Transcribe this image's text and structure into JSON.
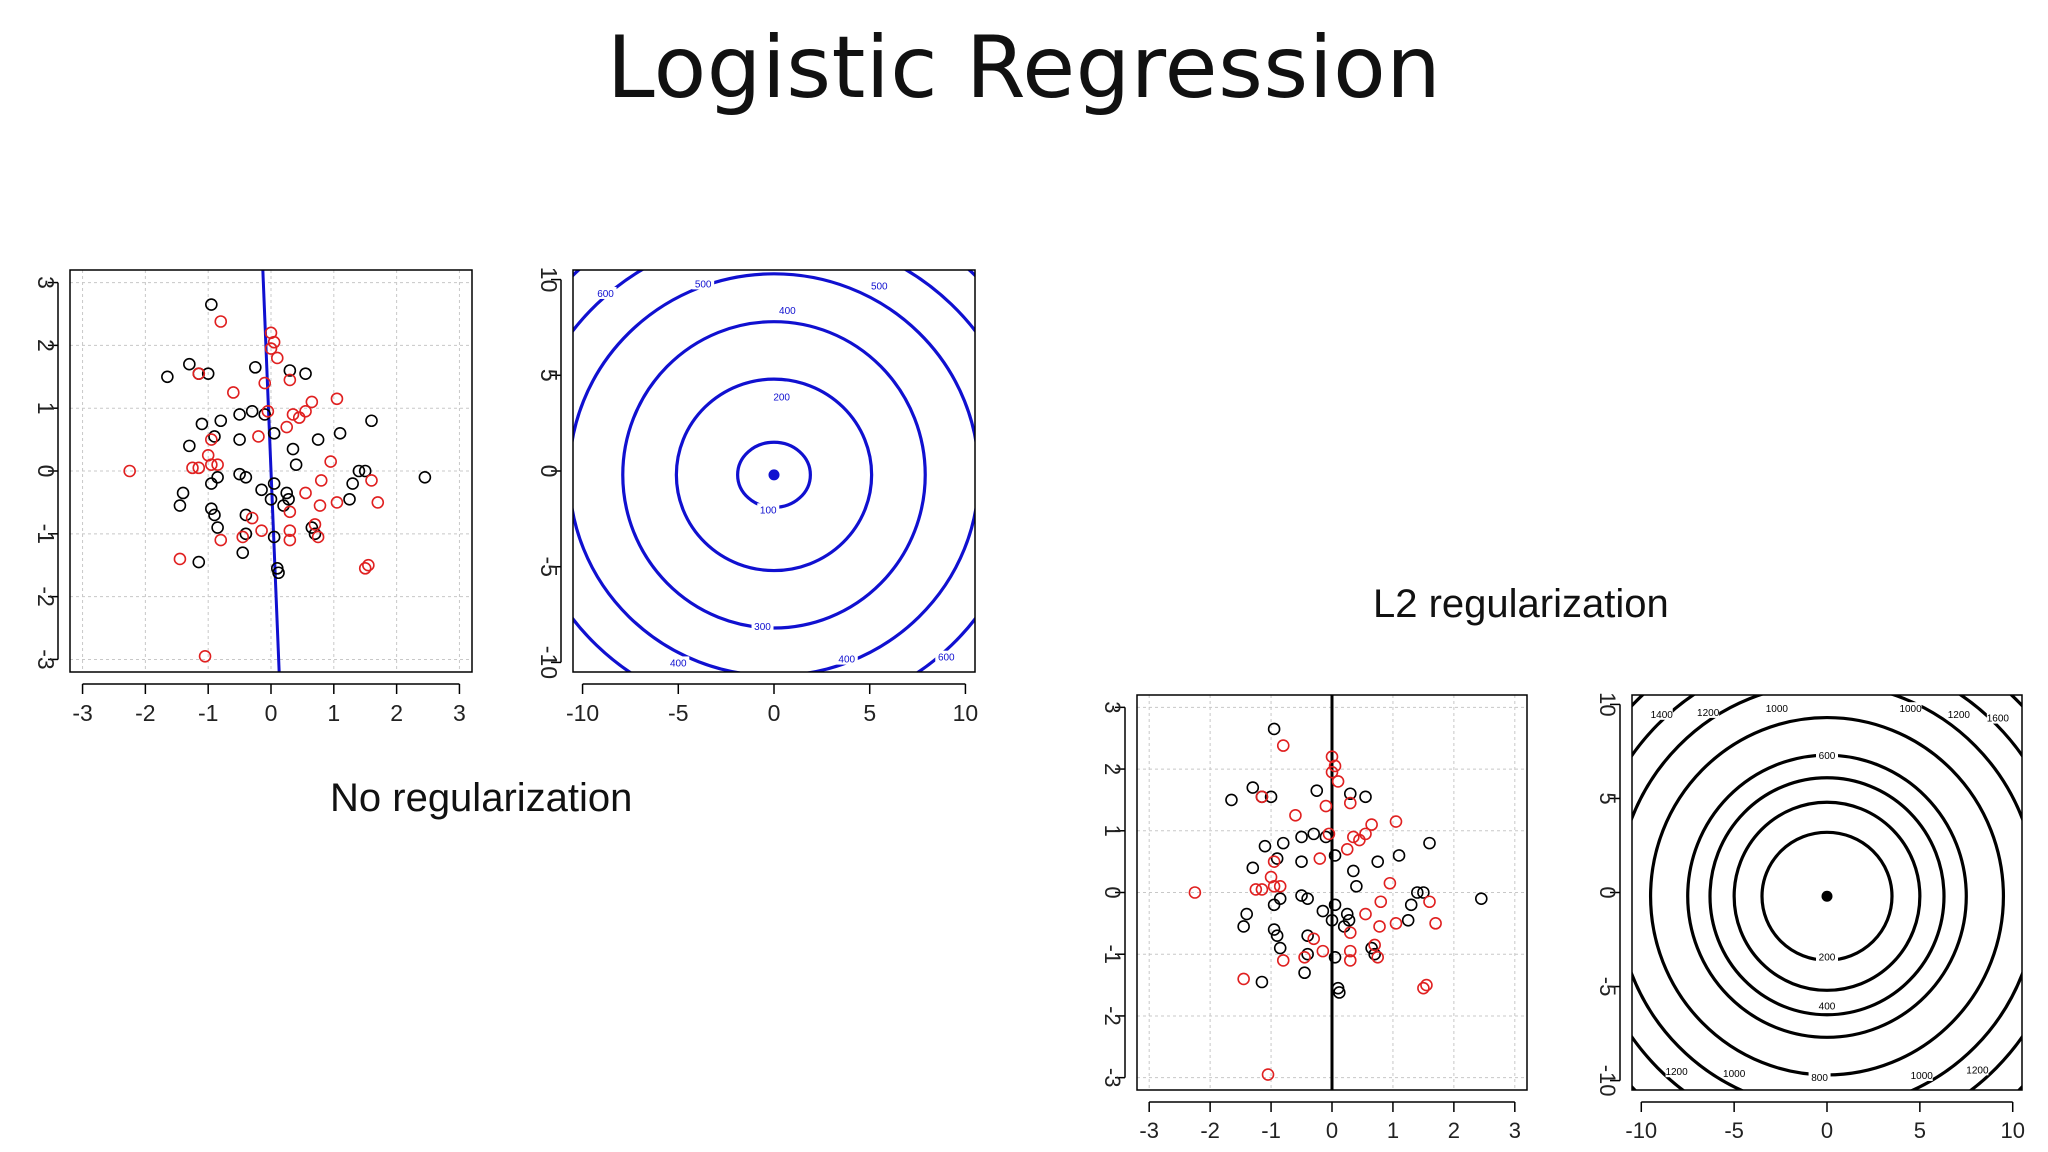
{
  "title": "Logistic Regression",
  "captions": {
    "no_reg": "No regularization",
    "l2": "L2 regularization"
  },
  "colors": {
    "class_a": "#000000",
    "class_b": "#e02020",
    "noreg_line": "#1010d0",
    "l2_line": "#000000",
    "grid": "#c8c8c8"
  },
  "chart_data": [
    {
      "id": "noreg-scatter",
      "type": "scatter",
      "xlim": [
        -3.2,
        3.2
      ],
      "ylim": [
        -3.2,
        3.2
      ],
      "xticks": [
        -3,
        -2,
        -1,
        0,
        1,
        2,
        3
      ],
      "yticks": [
        -3,
        -2,
        -1,
        0,
        1,
        2,
        3
      ],
      "grid": true,
      "line_color": "#1010d0",
      "boundary": [
        [
          -0.13,
          3.2
        ],
        [
          0.13,
          -3.2
        ]
      ],
      "series": [
        {
          "color": "#000000",
          "points": [
            [
              -0.95,
              2.65
            ],
            [
              -1.3,
              1.7
            ],
            [
              -1.65,
              1.5
            ],
            [
              -1.0,
              1.55
            ],
            [
              -1.15,
              1.55
            ],
            [
              0.3,
              1.6
            ],
            [
              0.55,
              1.55
            ],
            [
              -0.25,
              1.65
            ],
            [
              1.6,
              0.8
            ],
            [
              1.1,
              0.6
            ],
            [
              -0.5,
              0.9
            ],
            [
              -0.3,
              0.95
            ],
            [
              -0.1,
              0.9
            ],
            [
              -0.8,
              0.8
            ],
            [
              -1.1,
              0.75
            ],
            [
              -0.9,
              0.55
            ],
            [
              -0.5,
              0.5
            ],
            [
              0.05,
              0.6
            ],
            [
              0.35,
              0.35
            ],
            [
              0.75,
              0.5
            ],
            [
              -1.3,
              0.4
            ],
            [
              0.4,
              0.1
            ],
            [
              -0.85,
              -0.1
            ],
            [
              -0.5,
              -0.05
            ],
            [
              -0.4,
              -0.1
            ],
            [
              -0.95,
              -0.2
            ],
            [
              0.05,
              -0.2
            ],
            [
              -0.15,
              -0.3
            ],
            [
              0.25,
              -0.35
            ],
            [
              0.28,
              -0.45
            ],
            [
              1.4,
              0.0
            ],
            [
              1.5,
              0.0
            ],
            [
              1.3,
              -0.2
            ],
            [
              1.25,
              -0.45
            ],
            [
              2.45,
              -0.1
            ],
            [
              -1.4,
              -0.35
            ],
            [
              -1.45,
              -0.55
            ],
            [
              -0.95,
              -0.6
            ],
            [
              -0.9,
              -0.7
            ],
            [
              -0.85,
              -0.9
            ],
            [
              0.0,
              -0.45
            ],
            [
              0.2,
              -0.55
            ],
            [
              0.65,
              -0.9
            ],
            [
              0.7,
              -1.0
            ],
            [
              -0.4,
              -0.7
            ],
            [
              -0.4,
              -1.0
            ],
            [
              -0.45,
              -1.3
            ],
            [
              0.05,
              -1.05
            ],
            [
              -1.15,
              -1.45
            ],
            [
              0.1,
              -1.55
            ],
            [
              0.12,
              -1.62
            ]
          ]
        },
        {
          "color": "#e02020",
          "points": [
            [
              -0.8,
              2.38
            ],
            [
              0.0,
              2.2
            ],
            [
              0.05,
              2.05
            ],
            [
              0.0,
              1.95
            ],
            [
              0.1,
              1.8
            ],
            [
              -0.1,
              1.4
            ],
            [
              -1.15,
              1.55
            ],
            [
              -0.6,
              1.25
            ],
            [
              0.3,
              1.45
            ],
            [
              0.65,
              1.1
            ],
            [
              1.05,
              1.15
            ],
            [
              0.55,
              0.95
            ],
            [
              0.35,
              0.9
            ],
            [
              0.45,
              0.85
            ],
            [
              -0.05,
              0.95
            ],
            [
              0.25,
              0.7
            ],
            [
              -0.2,
              0.55
            ],
            [
              -0.95,
              0.5
            ],
            [
              -1.0,
              0.25
            ],
            [
              -0.95,
              0.1
            ],
            [
              -0.85,
              0.1
            ],
            [
              -1.15,
              0.05
            ],
            [
              -1.25,
              0.05
            ],
            [
              -2.25,
              0.0
            ],
            [
              0.95,
              0.15
            ],
            [
              0.8,
              -0.15
            ],
            [
              0.55,
              -0.35
            ],
            [
              1.05,
              -0.5
            ],
            [
              1.7,
              -0.5
            ],
            [
              1.6,
              -0.15
            ],
            [
              0.78,
              -0.55
            ],
            [
              0.3,
              -0.65
            ],
            [
              -0.3,
              -0.75
            ],
            [
              -0.15,
              -0.95
            ],
            [
              0.3,
              -0.95
            ],
            [
              0.3,
              -1.1
            ],
            [
              0.7,
              -0.85
            ],
            [
              0.75,
              -1.05
            ],
            [
              -0.8,
              -1.1
            ],
            [
              -0.45,
              -1.05
            ],
            [
              -1.45,
              -1.4
            ],
            [
              1.55,
              -1.5
            ],
            [
              1.5,
              -1.55
            ],
            [
              -1.05,
              -2.95
            ]
          ]
        }
      ]
    },
    {
      "id": "noreg-contour",
      "type": "contour",
      "xlim": [
        -10.5,
        10.5
      ],
      "ylim": [
        -10.5,
        10.5
      ],
      "xticks": [
        -10,
        -5,
        0,
        5,
        10
      ],
      "yticks": [
        -10,
        -5,
        0,
        5,
        10
      ],
      "grid": false,
      "line_color": "#1010d0",
      "center": [
        0,
        -0.2
      ],
      "levels": [
        {
          "label": "100",
          "rx": 1.9,
          "ry": 1.7
        },
        {
          "label": "200",
          "rx": 5.1,
          "ry": 5.0
        },
        {
          "label": "300",
          "rx": 7.9,
          "ry": 8.0
        },
        {
          "label": "400",
          "rx": 10.7,
          "ry": 10.5
        },
        {
          "label": "500",
          "rx": 13.1,
          "ry": 12.6
        },
        {
          "label": "600",
          "rx": 15.0,
          "ry": 14.6
        }
      ],
      "level_labels": [
        {
          "text": "100",
          "x": -0.3,
          "y": -2.0
        },
        {
          "text": "200",
          "x": 0.4,
          "y": 3.9
        },
        {
          "text": "300",
          "x": -0.6,
          "y": -8.1
        },
        {
          "text": "400",
          "x": 0.7,
          "y": 8.4
        },
        {
          "text": "400",
          "x": -5.0,
          "y": -10.0
        },
        {
          "text": "400",
          "x": 3.8,
          "y": -9.8
        },
        {
          "text": "500",
          "x": -3.7,
          "y": 9.8
        },
        {
          "text": "500",
          "x": 5.5,
          "y": 9.7
        },
        {
          "text": "600",
          "x": -8.8,
          "y": 9.3
        },
        {
          "text": "600",
          "x": 9.0,
          "y": -9.7
        }
      ]
    },
    {
      "id": "l2-scatter",
      "type": "scatter",
      "xlim": [
        -3.2,
        3.2
      ],
      "ylim": [
        -3.2,
        3.2
      ],
      "xticks": [
        -3,
        -2,
        -1,
        0,
        1,
        2,
        3
      ],
      "yticks": [
        -3,
        -2,
        -1,
        0,
        1,
        2,
        3
      ],
      "grid": true,
      "line_color": "#000000",
      "boundary": [
        [
          0.0,
          3.2
        ],
        [
          0.0,
          -3.2
        ]
      ],
      "series": [
        {
          "color": "#000000",
          "points": [
            [
              -0.95,
              2.65
            ],
            [
              -1.3,
              1.7
            ],
            [
              -1.65,
              1.5
            ],
            [
              -1.0,
              1.55
            ],
            [
              -1.15,
              1.55
            ],
            [
              0.3,
              1.6
            ],
            [
              0.55,
              1.55
            ],
            [
              -0.25,
              1.65
            ],
            [
              1.6,
              0.8
            ],
            [
              1.1,
              0.6
            ],
            [
              -0.5,
              0.9
            ],
            [
              -0.3,
              0.95
            ],
            [
              -0.1,
              0.9
            ],
            [
              -0.8,
              0.8
            ],
            [
              -1.1,
              0.75
            ],
            [
              -0.9,
              0.55
            ],
            [
              -0.5,
              0.5
            ],
            [
              0.05,
              0.6
            ],
            [
              0.35,
              0.35
            ],
            [
              0.75,
              0.5
            ],
            [
              -1.3,
              0.4
            ],
            [
              0.4,
              0.1
            ],
            [
              -0.85,
              -0.1
            ],
            [
              -0.5,
              -0.05
            ],
            [
              -0.4,
              -0.1
            ],
            [
              -0.95,
              -0.2
            ],
            [
              0.05,
              -0.2
            ],
            [
              -0.15,
              -0.3
            ],
            [
              0.25,
              -0.35
            ],
            [
              0.28,
              -0.45
            ],
            [
              1.4,
              0.0
            ],
            [
              1.5,
              0.0
            ],
            [
              1.3,
              -0.2
            ],
            [
              1.25,
              -0.45
            ],
            [
              2.45,
              -0.1
            ],
            [
              -1.4,
              -0.35
            ],
            [
              -1.45,
              -0.55
            ],
            [
              -0.95,
              -0.6
            ],
            [
              -0.9,
              -0.7
            ],
            [
              -0.85,
              -0.9
            ],
            [
              0.0,
              -0.45
            ],
            [
              0.2,
              -0.55
            ],
            [
              0.65,
              -0.9
            ],
            [
              0.7,
              -1.0
            ],
            [
              -0.4,
              -0.7
            ],
            [
              -0.4,
              -1.0
            ],
            [
              -0.45,
              -1.3
            ],
            [
              0.05,
              -1.05
            ],
            [
              -1.15,
              -1.45
            ],
            [
              0.1,
              -1.55
            ],
            [
              0.12,
              -1.62
            ]
          ]
        },
        {
          "color": "#e02020",
          "points": [
            [
              -0.8,
              2.38
            ],
            [
              0.0,
              2.2
            ],
            [
              0.05,
              2.05
            ],
            [
              0.0,
              1.95
            ],
            [
              0.1,
              1.8
            ],
            [
              -0.1,
              1.4
            ],
            [
              -1.15,
              1.55
            ],
            [
              -0.6,
              1.25
            ],
            [
              0.3,
              1.45
            ],
            [
              0.65,
              1.1
            ],
            [
              1.05,
              1.15
            ],
            [
              0.55,
              0.95
            ],
            [
              0.35,
              0.9
            ],
            [
              0.45,
              0.85
            ],
            [
              -0.05,
              0.95
            ],
            [
              0.25,
              0.7
            ],
            [
              -0.2,
              0.55
            ],
            [
              -0.95,
              0.5
            ],
            [
              -1.0,
              0.25
            ],
            [
              -0.95,
              0.1
            ],
            [
              -0.85,
              0.1
            ],
            [
              -1.15,
              0.05
            ],
            [
              -1.25,
              0.05
            ],
            [
              -2.25,
              0.0
            ],
            [
              0.95,
              0.15
            ],
            [
              0.8,
              -0.15
            ],
            [
              0.55,
              -0.35
            ],
            [
              1.05,
              -0.5
            ],
            [
              1.7,
              -0.5
            ],
            [
              1.6,
              -0.15
            ],
            [
              0.78,
              -0.55
            ],
            [
              0.3,
              -0.65
            ],
            [
              -0.3,
              -0.75
            ],
            [
              -0.15,
              -0.95
            ],
            [
              0.3,
              -0.95
            ],
            [
              0.3,
              -1.1
            ],
            [
              0.7,
              -0.85
            ],
            [
              0.75,
              -1.05
            ],
            [
              -0.8,
              -1.1
            ],
            [
              -0.45,
              -1.05
            ],
            [
              -1.45,
              -1.4
            ],
            [
              1.55,
              -1.5
            ],
            [
              1.5,
              -1.55
            ],
            [
              -1.05,
              -2.95
            ]
          ]
        }
      ]
    },
    {
      "id": "l2-contour",
      "type": "contour",
      "xlim": [
        -10.5,
        10.5
      ],
      "ylim": [
        -10.5,
        10.5
      ],
      "xticks": [
        -10,
        -5,
        0,
        5,
        10
      ],
      "yticks": [
        -10,
        -5,
        0,
        5,
        10
      ],
      "grid": false,
      "line_color": "#000000",
      "center": [
        0,
        -0.2
      ],
      "levels": [
        {
          "label": "200",
          "rx": 3.5,
          "ry": 3.4
        },
        {
          "label": "400",
          "rx": 5.0,
          "ry": 5.0
        },
        {
          "label": "600",
          "rx": 6.3,
          "ry": 6.3
        },
        {
          "label": "800",
          "rx": 7.5,
          "ry": 7.5
        },
        {
          "label": "1000",
          "rx": 9.5,
          "ry": 9.5
        },
        {
          "label": "1200",
          "rx": 11.3,
          "ry": 11.3
        },
        {
          "label": "1400",
          "rx": 12.9,
          "ry": 12.9
        },
        {
          "label": "1600",
          "rx": 14.6,
          "ry": 14.6
        }
      ],
      "level_labels": [
        {
          "text": "200",
          "x": 0.0,
          "y": -3.4
        },
        {
          "text": "400",
          "x": 0.0,
          "y": -6.0
        },
        {
          "text": "600",
          "x": 0.0,
          "y": 7.3
        },
        {
          "text": "800",
          "x": -0.4,
          "y": -9.8
        },
        {
          "text": "1000",
          "x": -2.7,
          "y": 9.8
        },
        {
          "text": "1000",
          "x": 4.5,
          "y": 9.8
        },
        {
          "text": "1000",
          "x": -5.0,
          "y": -9.6
        },
        {
          "text": "1000",
          "x": 5.1,
          "y": -9.7
        },
        {
          "text": "1200",
          "x": -6.4,
          "y": 9.6
        },
        {
          "text": "1200",
          "x": 7.1,
          "y": 9.5
        },
        {
          "text": "1200",
          "x": -8.1,
          "y": -9.5
        },
        {
          "text": "1200",
          "x": 8.1,
          "y": -9.4
        },
        {
          "text": "1400",
          "x": -8.9,
          "y": 9.5
        },
        {
          "text": "1600",
          "x": 9.2,
          "y": 9.3
        }
      ]
    }
  ]
}
